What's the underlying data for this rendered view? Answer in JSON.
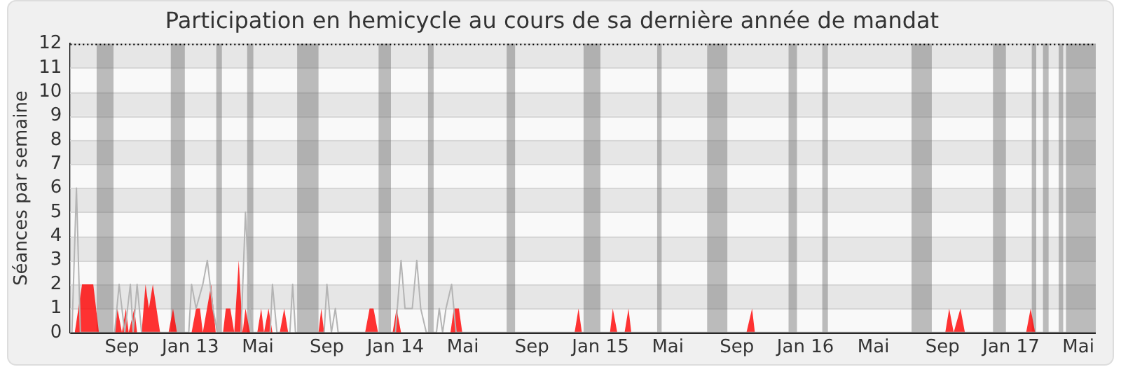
{
  "chart_data": {
    "type": "area",
    "title": "Participation en hemicycle au cours de sa dernière année de mandat",
    "ylabel": "Séances par semaine",
    "xlim": [
      "2012-06-01",
      "2017-06-01"
    ],
    "ylim": [
      0,
      12
    ],
    "yticks": [
      0,
      1,
      2,
      3,
      4,
      5,
      6,
      7,
      8,
      9,
      10,
      11,
      12
    ],
    "xticks": [
      {
        "value": "2012-09-01",
        "label": "Sep"
      },
      {
        "value": "2013-01-01",
        "label": "Jan 13"
      },
      {
        "value": "2013-05-01",
        "label": "Mai"
      },
      {
        "value": "2013-09-01",
        "label": "Sep"
      },
      {
        "value": "2014-01-01",
        "label": "Jan 14"
      },
      {
        "value": "2014-05-01",
        "label": "Mai"
      },
      {
        "value": "2014-09-01",
        "label": "Sep"
      },
      {
        "value": "2015-01-01",
        "label": "Jan 15"
      },
      {
        "value": "2015-05-01",
        "label": "Mai"
      },
      {
        "value": "2015-09-01",
        "label": "Sep"
      },
      {
        "value": "2016-01-01",
        "label": "Jan 16"
      },
      {
        "value": "2016-05-01",
        "label": "Mai"
      },
      {
        "value": "2016-09-01",
        "label": "Sep"
      },
      {
        "value": "2017-01-01",
        "label": "Jan 17"
      },
      {
        "value": "2017-05-01",
        "label": "Mai"
      }
    ],
    "grid": "y",
    "legend": false,
    "bands": [
      {
        "axis": "x",
        "from": "2012-07-18",
        "to": "2012-08-17",
        "color": "#6e6e6e"
      },
      {
        "axis": "x",
        "from": "2012-11-27",
        "to": "2012-12-22",
        "color": "#6e6e6e"
      },
      {
        "axis": "x",
        "from": "2013-02-16",
        "to": "2013-02-26",
        "color": "#6e6e6e"
      },
      {
        "axis": "x",
        "from": "2013-04-12",
        "to": "2013-04-23",
        "color": "#6e6e6e"
      },
      {
        "axis": "x",
        "from": "2013-07-10",
        "to": "2013-08-17",
        "color": "#6e6e6e"
      },
      {
        "axis": "x",
        "from": "2013-12-02",
        "to": "2013-12-24",
        "color": "#6e6e6e"
      },
      {
        "axis": "x",
        "from": "2014-02-28",
        "to": "2014-03-10",
        "color": "#6e6e6e"
      },
      {
        "axis": "x",
        "from": "2014-07-18",
        "to": "2014-08-02",
        "color": "#6e6e6e"
      },
      {
        "axis": "x",
        "from": "2014-12-02",
        "to": "2015-01-01",
        "color": "#6e6e6e"
      },
      {
        "axis": "x",
        "from": "2015-04-12",
        "to": "2015-04-20",
        "color": "#6e6e6e"
      },
      {
        "axis": "x",
        "from": "2015-07-10",
        "to": "2015-08-15",
        "color": "#6e6e6e"
      },
      {
        "axis": "x",
        "from": "2015-12-02",
        "to": "2015-12-17",
        "color": "#6e6e6e"
      },
      {
        "axis": "x",
        "from": "2016-01-31",
        "to": "2016-02-10",
        "color": "#6e6e6e"
      },
      {
        "axis": "x",
        "from": "2016-07-08",
        "to": "2016-08-13",
        "color": "#6e6e6e"
      },
      {
        "axis": "x",
        "from": "2016-11-30",
        "to": "2016-12-23",
        "color": "#6e6e6e"
      },
      {
        "axis": "x",
        "from": "2017-02-07",
        "to": "2017-02-15",
        "color": "#6e6e6e"
      },
      {
        "axis": "x",
        "from": "2017-02-27",
        "to": "2017-03-09",
        "color": "#6e6e6e"
      },
      {
        "axis": "x",
        "from": "2017-03-27",
        "to": "2017-04-04",
        "color": "#6e6e6e"
      },
      {
        "axis": "x",
        "from": "2017-04-09",
        "to": "2017-06-01",
        "color": "#6e6e6e"
      }
    ],
    "series": [
      {
        "type": "line",
        "color": "#b4b4b4",
        "x": [
          "2012-06-04",
          "2012-06-12",
          "2012-06-19",
          "2012-08-19",
          "2012-08-27",
          "2012-09-06",
          "2012-09-16",
          "2012-09-21",
          "2012-09-28",
          "2012-10-06",
          "2012-12-29",
          "2013-01-03",
          "2013-01-11",
          "2013-01-23",
          "2013-01-31",
          "2013-02-10",
          "2013-02-18",
          "2013-04-01",
          "2013-04-09",
          "2013-04-17",
          "2013-04-22",
          "2013-05-23",
          "2013-05-27",
          "2013-06-04",
          "2013-06-27",
          "2013-07-02",
          "2013-07-07",
          "2013-08-27",
          "2013-09-01",
          "2013-09-09",
          "2013-09-16",
          "2013-09-21",
          "2014-01-01",
          "2014-01-11",
          "2014-01-18",
          "2014-01-31",
          "2014-02-08",
          "2014-02-15",
          "2014-02-25",
          "2014-03-15",
          "2014-03-20",
          "2014-03-26",
          "2014-04-01",
          "2014-04-11",
          "2014-04-19",
          "2017-06-01"
        ],
        "values": [
          0,
          6,
          0,
          0,
          2,
          0,
          2,
          0,
          2,
          0,
          0,
          2,
          1,
          2,
          3,
          1,
          0,
          0,
          5,
          1,
          0,
          0,
          2,
          0,
          0,
          2,
          0,
          0,
          2,
          0,
          1,
          0,
          0,
          3,
          1,
          1,
          3,
          1,
          0,
          0,
          1,
          0,
          1,
          2,
          0,
          0
        ]
      },
      {
        "color": "#ff0000",
        "x": [
          "2012-06-09",
          "2012-06-22",
          "2012-07-12",
          "2012-07-22",
          "2012-08-19",
          "2012-08-24",
          "2012-09-01",
          "2012-09-08",
          "2012-09-13",
          "2012-09-23",
          "2012-09-28",
          "2012-10-06",
          "2012-10-13",
          "2012-10-19",
          "2012-10-26",
          "2012-11-08",
          "2012-11-23",
          "2012-12-01",
          "2012-12-08",
          "2013-01-03",
          "2013-01-11",
          "2013-01-18",
          "2013-01-23",
          "2013-02-07",
          "2013-02-15",
          "2013-02-28",
          "2013-03-05",
          "2013-03-13",
          "2013-03-20",
          "2013-03-28",
          "2013-04-04",
          "2013-04-09",
          "2013-04-17",
          "2013-04-30",
          "2013-05-07",
          "2013-05-12",
          "2013-05-20",
          "2013-05-27",
          "2013-06-09",
          "2013-06-17",
          "2013-06-24",
          "2013-08-17",
          "2013-08-22",
          "2013-08-27",
          "2013-11-08",
          "2013-11-16",
          "2013-11-23",
          "2013-12-01",
          "2013-12-27",
          "2014-01-03",
          "2014-01-11",
          "2014-04-09",
          "2014-04-15",
          "2014-04-24",
          "2014-04-30",
          "2014-11-16",
          "2014-11-23",
          "2014-11-29",
          "2015-01-18",
          "2015-01-23",
          "2015-01-31",
          "2015-02-13",
          "2015-02-20",
          "2015-02-25",
          "2015-09-18",
          "2015-09-28",
          "2015-10-03",
          "2016-09-06",
          "2016-09-13",
          "2016-09-21",
          "2016-10-03",
          "2016-10-11",
          "2017-01-28",
          "2017-02-05",
          "2017-02-13",
          "2017-06-01"
        ],
        "values": [
          0,
          2,
          2,
          0,
          0,
          1,
          0,
          1,
          0,
          1,
          0,
          0,
          2,
          1,
          2,
          0,
          0,
          1,
          0,
          0,
          1,
          1,
          0,
          2,
          0,
          0,
          1,
          1,
          0,
          3,
          0,
          1,
          0,
          0,
          1,
          0,
          1,
          0,
          0,
          1,
          0,
          0,
          1,
          0,
          0,
          1,
          1,
          0,
          0,
          1,
          0,
          0,
          1,
          1,
          0,
          0,
          1,
          0,
          0,
          1,
          0,
          0,
          1,
          0,
          0,
          1,
          0,
          0,
          1,
          0,
          1,
          0,
          0,
          1,
          0,
          0
        ]
      }
    ]
  }
}
